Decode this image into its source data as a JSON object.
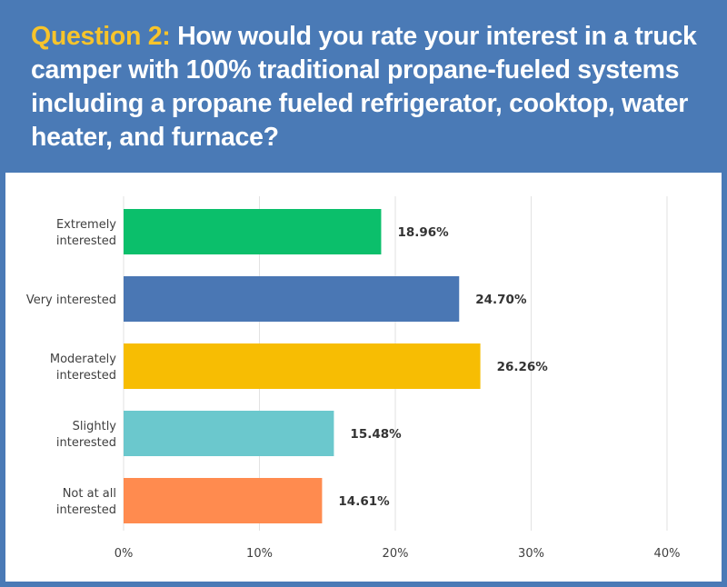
{
  "header": {
    "question_label": "Question 2:",
    "question_text": "How would you rate your interest in a truck camper with 100% traditional propane-fueled systems including a propane fueled refrigerator, cooktop, water heater, and furnace?"
  },
  "colors": {
    "background": "#4a7ab6",
    "accent": "#f7c42b",
    "panel": "#ffffff"
  },
  "chart_data": {
    "type": "bar",
    "orientation": "horizontal",
    "categories": [
      [
        "Extremely",
        "interested"
      ],
      [
        "Very interested"
      ],
      [
        "Moderately",
        "interested"
      ],
      [
        "Slightly",
        "interested"
      ],
      [
        "Not at all",
        "interested"
      ]
    ],
    "values": [
      18.96,
      24.7,
      26.26,
      15.48,
      14.61
    ],
    "value_labels": [
      "18.96%",
      "24.70%",
      "26.26%",
      "15.48%",
      "14.61%"
    ],
    "bar_colors": [
      "#0bbf6b",
      "#4a77b4",
      "#f7bd03",
      "#6bc8cd",
      "#ff8b4f"
    ],
    "x_ticks": [
      "0%",
      "10%",
      "20%",
      "30%",
      "40%"
    ],
    "xlim": [
      0,
      40
    ],
    "grid": true,
    "title": "",
    "xlabel": "",
    "ylabel": ""
  }
}
